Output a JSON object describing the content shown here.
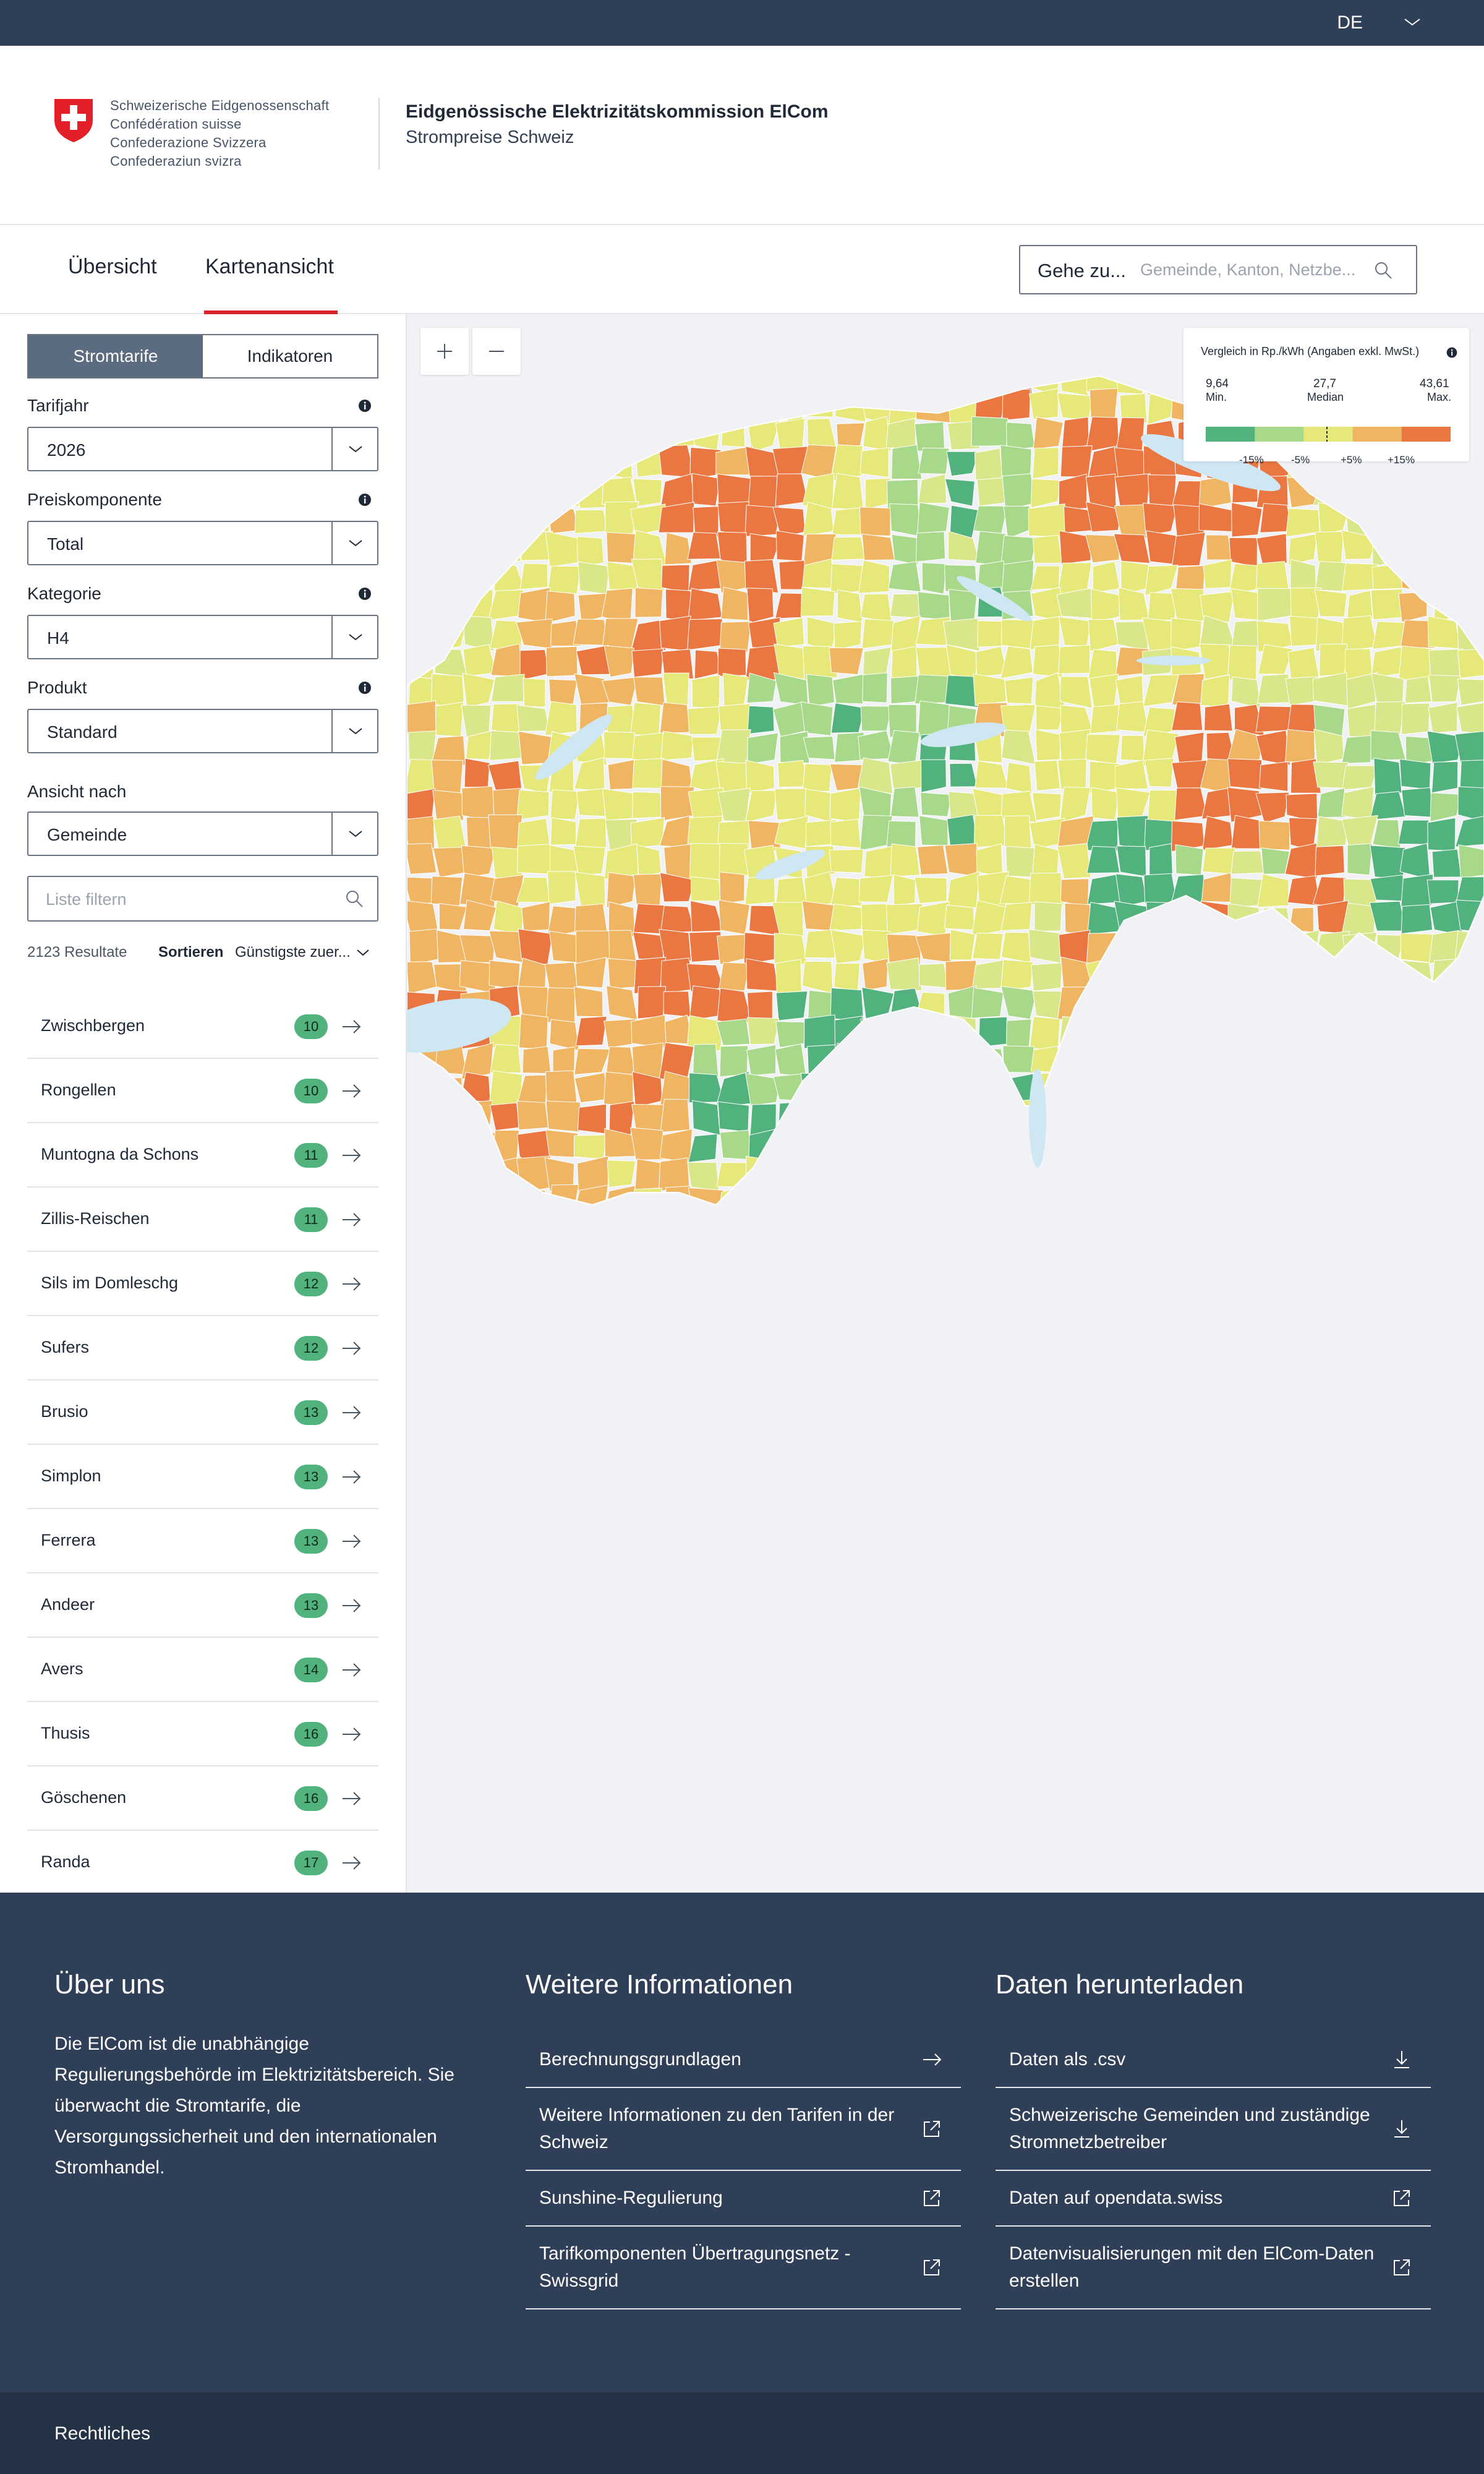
{
  "topbar": {
    "language": "DE"
  },
  "header": {
    "federal_lines": [
      "Schweizerische Eidgenossenschaft",
      "Confédération suisse",
      "Confederazione Svizzera",
      "Confederaziun svizra"
    ],
    "org_name": "Eidgenössische Elektrizitätskommission ElCom",
    "org_subtitle": "Strompreise Schweiz"
  },
  "nav": {
    "tabs": [
      {
        "label": "Übersicht",
        "active": false
      },
      {
        "label": "Kartenansicht",
        "active": true
      }
    ],
    "goto_label": "Gehe zu...",
    "goto_placeholder": "Gemeinde, Kanton, Netzbe..."
  },
  "sidebar": {
    "segment": {
      "options": [
        "Stromtarife",
        "Indikatoren"
      ],
      "active": 0
    },
    "fields": [
      {
        "label": "Tarifjahr",
        "value": "2026",
        "info": true
      },
      {
        "label": "Preiskomponente",
        "value": "Total",
        "info": true
      },
      {
        "label": "Kategorie",
        "value": "H4",
        "info": true
      },
      {
        "label": "Produkt",
        "value": "Standard",
        "info": true
      },
      {
        "label": "Ansicht nach",
        "value": "Gemeinde",
        "info": false
      }
    ],
    "filter_placeholder": "Liste filtern",
    "results": "2123 Resultate",
    "sort_label": "Sortieren",
    "sort_value": "Günstigste zuer...",
    "items": [
      {
        "name": "Zwischbergen",
        "value": "10"
      },
      {
        "name": "Rongellen",
        "value": "10"
      },
      {
        "name": "Muntogna da Schons",
        "value": "11"
      },
      {
        "name": "Zillis-Reischen",
        "value": "11"
      },
      {
        "name": "Sils im Domleschg",
        "value": "12"
      },
      {
        "name": "Sufers",
        "value": "12"
      },
      {
        "name": "Brusio",
        "value": "13"
      },
      {
        "name": "Simplon",
        "value": "13"
      },
      {
        "name": "Ferrera",
        "value": "13"
      },
      {
        "name": "Andeer",
        "value": "13"
      },
      {
        "name": "Avers",
        "value": "14"
      },
      {
        "name": "Thusis",
        "value": "16"
      },
      {
        "name": "Göschenen",
        "value": "16"
      },
      {
        "name": "Randa",
        "value": "17"
      }
    ]
  },
  "map": {
    "legend": {
      "title": "Vergleich in Rp./kWh (Angaben exkl. MwSt.)",
      "min_value": "9,64",
      "min_label": "Min.",
      "median_value": "27,7",
      "median_label": "Median",
      "max_value": "43,61",
      "max_label": "Max.",
      "ticks": [
        "-15%",
        "-5%",
        "+5%",
        "+15%"
      ],
      "colors": [
        "#52b27d",
        "#a8d98a",
        "#e6e87a",
        "#f0b562",
        "#ea7641"
      ]
    },
    "colors": {
      "lake": "#cfe6f3",
      "background": "#f0f2f5"
    }
  },
  "footer": {
    "about": {
      "heading": "Über uns",
      "text": "Die ElCom ist die unabhängige Regulierungsbehörde im Elektrizitätsbereich. Sie überwacht die Stromtarife, die Versorgungssicherheit und den internationalen Stromhandel."
    },
    "info": {
      "heading": "Weitere Informationen",
      "links": [
        {
          "label": "Berechnungsgrundlagen",
          "icon": "arrow-right-icon"
        },
        {
          "label": "Weitere Informationen zu den Tarifen in der Schweiz",
          "icon": "external-link-icon"
        },
        {
          "label": "Sunshine-Regulierung",
          "icon": "external-link-icon"
        },
        {
          "label": "Tarifkomponenten Übertragungsnetz - Swissgrid",
          "icon": "external-link-icon"
        }
      ]
    },
    "downloads": {
      "heading": "Daten herunterladen",
      "links": [
        {
          "label": "Daten als .csv",
          "icon": "download-icon"
        },
        {
          "label": "Schweizerische Gemeinden und zuständige Stromnetzbetreiber",
          "icon": "download-icon"
        },
        {
          "label": "Daten auf opendata.swiss",
          "icon": "external-link-icon"
        },
        {
          "label": "Datenvisualisierungen mit den ElCom-Daten erstellen",
          "icon": "external-link-icon"
        }
      ]
    },
    "legal": "Rechtliches"
  }
}
